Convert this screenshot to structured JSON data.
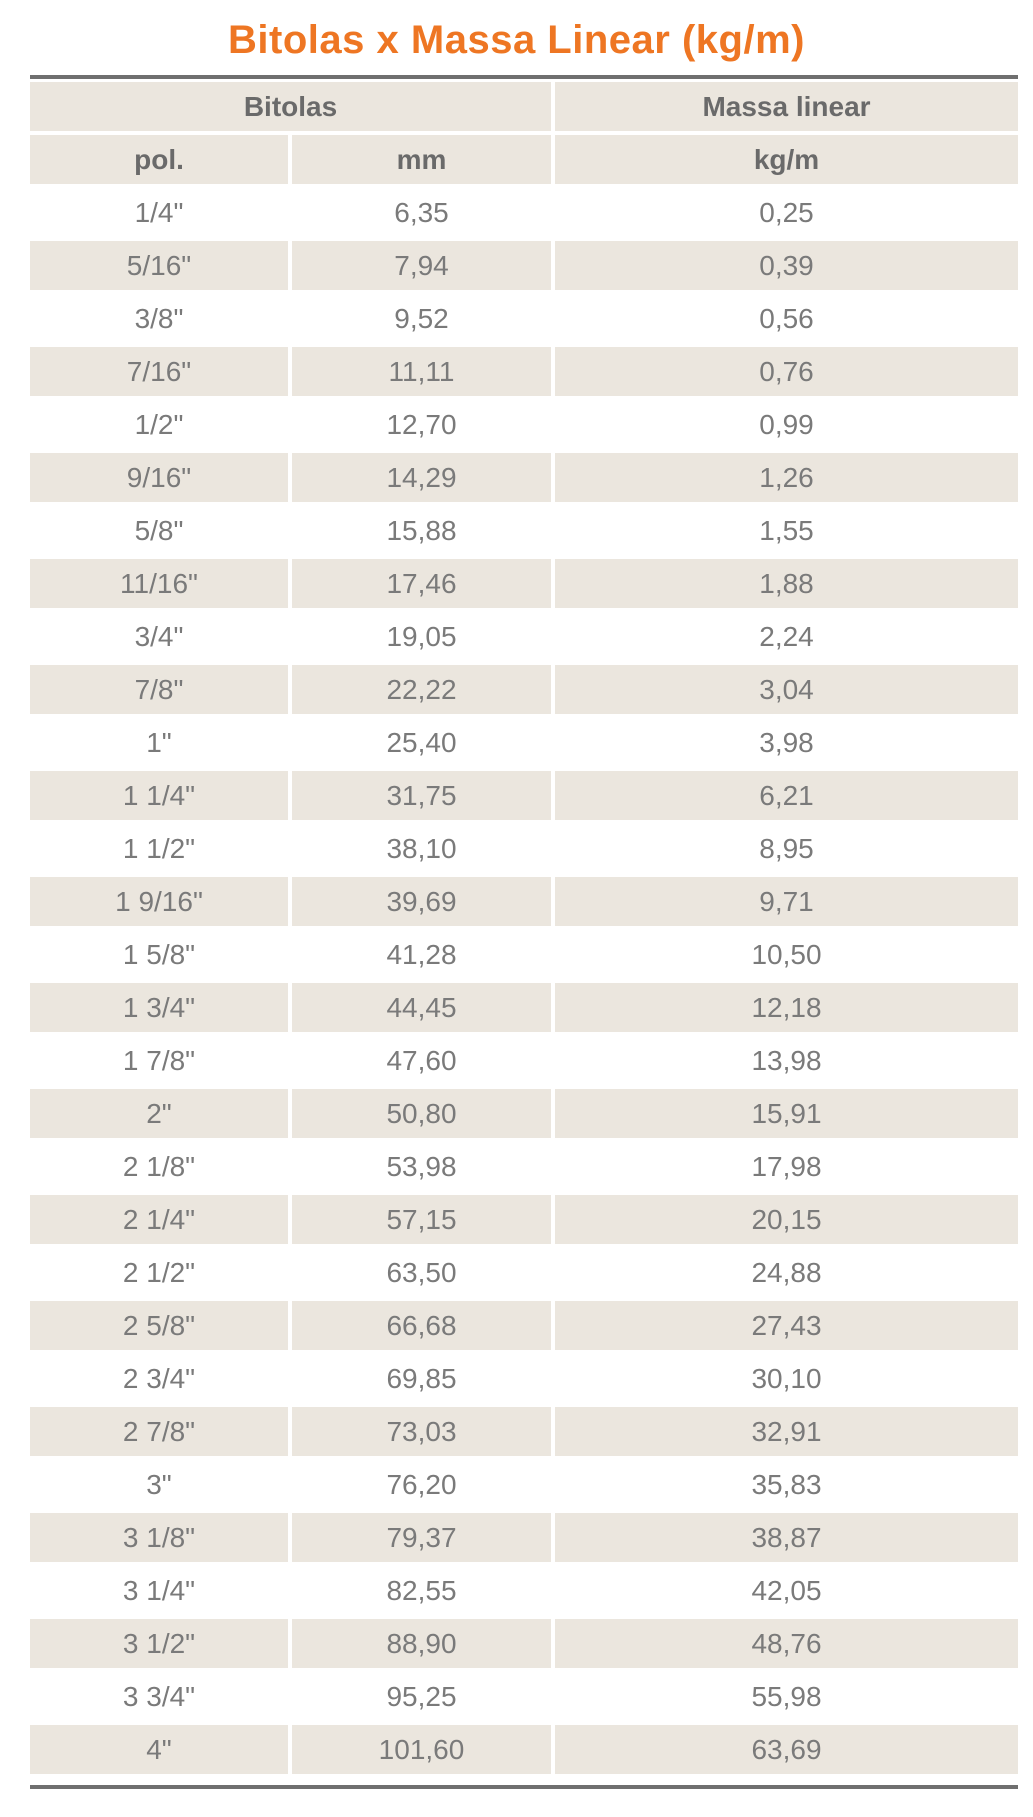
{
  "title": "Bitolas x Massa Linear (kg/m)",
  "header": {
    "group_bitolas": "Bitolas",
    "group_massa": "Massa linear",
    "col_pol": "pol.",
    "col_mm": "mm",
    "col_kgm": "kg/m"
  },
  "colors": {
    "title": "#ee7623",
    "shade": "#ebe6de",
    "rule": "#6f6f6f"
  },
  "rows": [
    {
      "pol": "1/4\"",
      "mm": "6,35",
      "kgm": "0,25"
    },
    {
      "pol": "5/16\"",
      "mm": "7,94",
      "kgm": "0,39"
    },
    {
      "pol": "3/8\"",
      "mm": "9,52",
      "kgm": "0,56"
    },
    {
      "pol": "7/16\"",
      "mm": "11,11",
      "kgm": "0,76"
    },
    {
      "pol": "1/2\"",
      "mm": "12,70",
      "kgm": "0,99"
    },
    {
      "pol": "9/16\"",
      "mm": "14,29",
      "kgm": "1,26"
    },
    {
      "pol": "5/8\"",
      "mm": "15,88",
      "kgm": "1,55"
    },
    {
      "pol": "11/16\"",
      "mm": "17,46",
      "kgm": "1,88"
    },
    {
      "pol": "3/4\"",
      "mm": "19,05",
      "kgm": "2,24"
    },
    {
      "pol": "7/8\"",
      "mm": "22,22",
      "kgm": "3,04"
    },
    {
      "pol": "1\"",
      "mm": "25,40",
      "kgm": "3,98"
    },
    {
      "pol": "1 1/4\"",
      "mm": "31,75",
      "kgm": "6,21"
    },
    {
      "pol": "1 1/2\"",
      "mm": "38,10",
      "kgm": "8,95"
    },
    {
      "pol": "1 9/16\"",
      "mm": "39,69",
      "kgm": "9,71"
    },
    {
      "pol": "1 5/8\"",
      "mm": "41,28",
      "kgm": "10,50"
    },
    {
      "pol": "1 3/4\"",
      "mm": "44,45",
      "kgm": "12,18"
    },
    {
      "pol": "1 7/8\"",
      "mm": "47,60",
      "kgm": "13,98"
    },
    {
      "pol": "2\"",
      "mm": "50,80",
      "kgm": "15,91"
    },
    {
      "pol": "2 1/8\"",
      "mm": "53,98",
      "kgm": "17,98"
    },
    {
      "pol": "2 1/4\"",
      "mm": "57,15",
      "kgm": "20,15"
    },
    {
      "pol": "2 1/2\"",
      "mm": "63,50",
      "kgm": "24,88"
    },
    {
      "pol": "2 5/8\"",
      "mm": "66,68",
      "kgm": "27,43"
    },
    {
      "pol": "2 3/4\"",
      "mm": "69,85",
      "kgm": "30,10"
    },
    {
      "pol": "2 7/8\"",
      "mm": "73,03",
      "kgm": "32,91"
    },
    {
      "pol": "3\"",
      "mm": "76,20",
      "kgm": "35,83"
    },
    {
      "pol": "3 1/8\"",
      "mm": "79,37",
      "kgm": "38,87"
    },
    {
      "pol": "3 1/4\"",
      "mm": "82,55",
      "kgm": "42,05"
    },
    {
      "pol": "3 1/2\"",
      "mm": "88,90",
      "kgm": "48,76"
    },
    {
      "pol": "3 3/4\"",
      "mm": "95,25",
      "kgm": "55,98"
    },
    {
      "pol": "4\"",
      "mm": "101,60",
      "kgm": "63,69"
    }
  ]
}
